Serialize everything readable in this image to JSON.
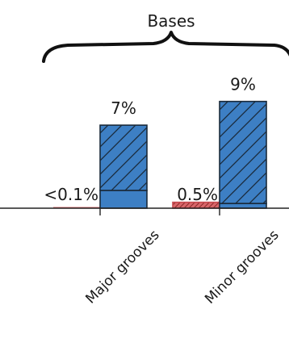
{
  "chart_data": {
    "type": "bar",
    "title": "Bases",
    "categories": [
      "Major grooves",
      "Minor grooves"
    ],
    "series": [
      {
        "values": [
          0.1,
          0.5
        ],
        "value_labels": [
          "<0.1%",
          "0.5%"
        ],
        "color": "#d9676a",
        "hatch": "dense"
      },
      {
        "values": [
          7,
          9
        ],
        "segments": [
          {
            "values": [
              1.5,
              0.4
            ],
            "hatch": "none"
          },
          {
            "values": [
              5.5,
              8.6
            ],
            "hatch": "diagonal"
          }
        ],
        "value_labels": [
          "7%",
          "9%"
        ],
        "color": "#3d7fc4"
      }
    ],
    "ylim": [
      0,
      10
    ],
    "grid": false,
    "legend": "none",
    "units": "%"
  }
}
